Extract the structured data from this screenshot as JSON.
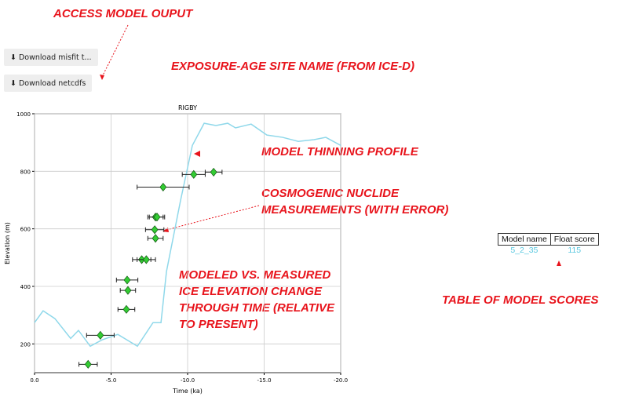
{
  "annotations": [
    "ACCESS MODEL OUPUT",
    "EXPOSURE-AGE SITE NAME (FROM ICE-D)",
    "MODEL THINNING PROFILE",
    "COSMOGENIC NUCLIDE MEASUREMENTS (WITH ERROR)",
    "MODELED VS. MEASURED ICE ELEVATION CHANGE THROUGH TIME (RELATIVE TO PRESENT)",
    "TABLE OF MODEL SCORES"
  ],
  "buttons": [
    "Download misfit t...",
    "Download netcdfs"
  ],
  "table": {
    "header": [
      "Model name",
      "Float score"
    ],
    "rows": [
      [
        "5_2_35",
        "115"
      ]
    ]
  },
  "chart_data": {
    "type": "scatter",
    "title": "RIGBY",
    "x_label": "Time (ka)",
    "y_label": "Elevation (m)",
    "xlim": [
      0,
      -20
    ],
    "ylim": [
      100,
      1000
    ],
    "xticks": [
      {
        "value": 0,
        "label": "0.0"
      },
      {
        "value": -5,
        "label": "-5.0"
      },
      {
        "value": -10,
        "label": "-10.0"
      },
      {
        "value": -15,
        "label": "-15.0"
      },
      {
        "value": -20,
        "label": "-20.0"
      }
    ],
    "yticks": [
      200,
      400,
      600,
      800,
      1000
    ],
    "grid": true,
    "line": {
      "color": "#8fd8ea",
      "x": [
        0,
        -0.56,
        -1.33,
        -2.36,
        -2.87,
        -3.64,
        -4.41,
        -5.44,
        -6.72,
        -7.74,
        -8.26,
        -8.62,
        -9.54,
        -10.31,
        -11.08,
        -11.85,
        -12.62,
        -13.13,
        -14.15,
        -15.18,
        -16.21,
        -17.23,
        -18.26,
        -19.03,
        -20
      ],
      "values": [
        274,
        315,
        288,
        219,
        247,
        192,
        214,
        233,
        192,
        274,
        274,
        452,
        699,
        890,
        967,
        959,
        967,
        951,
        964,
        926,
        918,
        904,
        910,
        918,
        890
      ]
    },
    "points": {
      "color": "#33cc33",
      "x": [
        -3.5,
        -4.3,
        -6.0,
        -6.1,
        -6.05,
        -7.0,
        -7.3,
        -7.9,
        -7.85,
        -7.9,
        -8.0,
        -8.4,
        -10.4,
        -11.7
      ],
      "values": [
        129,
        230,
        320,
        386,
        422,
        493,
        493,
        567,
        597,
        641,
        641,
        745,
        789,
        797
      ],
      "xerr": [
        0.6,
        0.9,
        0.55,
        0.5,
        0.7,
        0.6,
        0.6,
        0.5,
        0.6,
        0.5,
        0.5,
        1.7,
        0.75,
        0.55
      ]
    }
  }
}
